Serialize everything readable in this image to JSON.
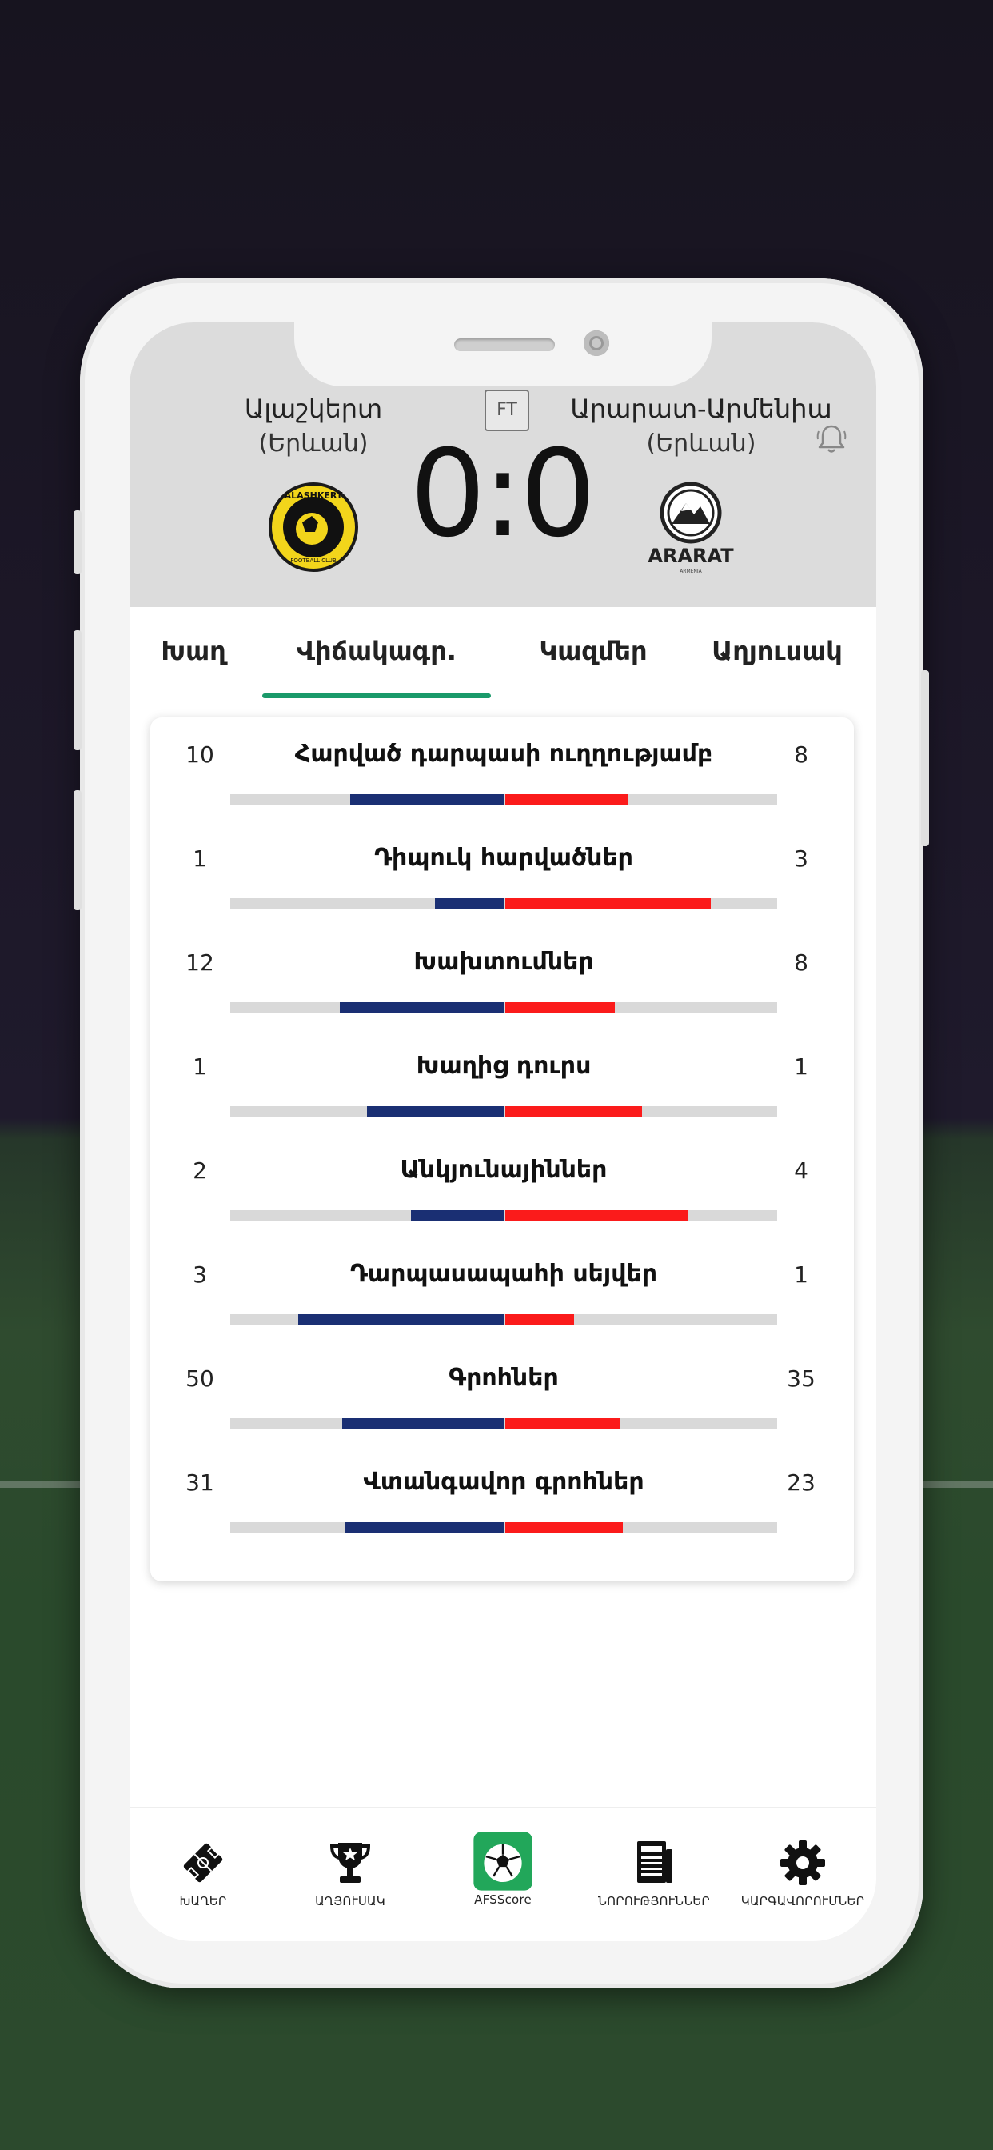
{
  "match": {
    "home_name": "Ալաշկերտ",
    "home_city": "(Երևան)",
    "away_name": "Արարատ-Արմենիա",
    "away_city": "(Երևան)",
    "status": "FT",
    "score": "0:0",
    "home_logo_text": "ALASHKERT",
    "home_logo_subtext": "FOOTBALL CLUB",
    "away_logo_text": "ARARAT",
    "away_logo_subtext": "ARMENIA"
  },
  "tabs": [
    {
      "label": "Խաղ"
    },
    {
      "label": "Վիճակագր."
    },
    {
      "label": "Կազմեր"
    },
    {
      "label": "Աղյուսակ"
    }
  ],
  "active_tab": "Վիճակագր.",
  "stats": [
    {
      "label": "Հարված դարպասի ուղղությամբ",
      "home": "10",
      "away": "8",
      "home_share": 0.56,
      "away_share": 0.45
    },
    {
      "label": "Դիպուկ հարվածներ",
      "home": "1",
      "away": "3",
      "home_share": 0.25,
      "away_share": 0.75
    },
    {
      "label": "Խախտումներ",
      "home": "12",
      "away": "8",
      "home_share": 0.6,
      "away_share": 0.4
    },
    {
      "label": "Խաղից դուրս",
      "home": "1",
      "away": "1",
      "home_share": 0.5,
      "away_share": 0.5
    },
    {
      "label": "Անկյունայիններ",
      "home": "2",
      "away": "4",
      "home_share": 0.34,
      "away_share": 0.67
    },
    {
      "label": "Դարպասապահի սեյվեր",
      "home": "3",
      "away": "1",
      "home_share": 0.75,
      "away_share": 0.25
    },
    {
      "label": "Գրոհներ",
      "home": "50",
      "away": "35",
      "home_share": 0.59,
      "away_share": 0.42
    },
    {
      "label": "Վտանգավոր գրոհներ",
      "home": "31",
      "away": "23",
      "home_share": 0.58,
      "away_share": 0.43
    }
  ],
  "bottom_nav": [
    {
      "label": "ԽԱՂԵՐ",
      "icon": "stadium-icon"
    },
    {
      "label": "ԱՂՅՈՒՍԱԿ",
      "icon": "trophy-icon"
    },
    {
      "label": "AFSScore",
      "icon": "afsscore-ball-icon"
    },
    {
      "label": "ՆՈՐՈՒԹՅՈՒՆՆԵՐ",
      "icon": "newspaper-icon"
    },
    {
      "label": "ԿԱՐԳԱՎՈՐՈՒՄՆԵՐ",
      "icon": "gear-icon"
    }
  ],
  "colors": {
    "home_bar": "#1a2f73",
    "away_bar": "#fb1b1b",
    "track": "#d9d9d9",
    "tab_accent": "#1a9a6a",
    "afs_green": "#22a75a"
  }
}
